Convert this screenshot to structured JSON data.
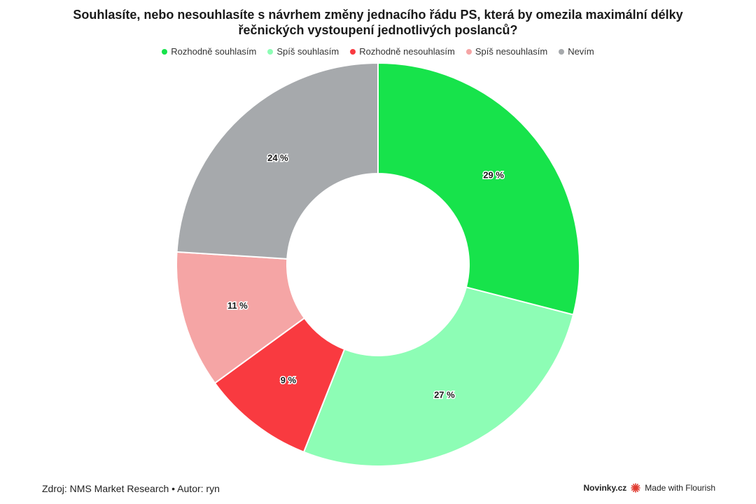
{
  "chart_data": {
    "type": "pie",
    "title": "Souhlasíte, nebo nesouhlasíte s návrhem změny jednacího řádu PS, která by omezila maximální délky řečnických vystoupení jednotlivých poslanců?",
    "donut": true,
    "legend_position": "top",
    "slices": [
      {
        "label": "Rozhodně souhlasím",
        "value": 29,
        "display": "29 %",
        "color": "#17e34b"
      },
      {
        "label": "Spíš souhlasím",
        "value": 27,
        "display": "27 %",
        "color": "#8dfdb5"
      },
      {
        "label": "Rozhodně nesouhlasím",
        "value": 9,
        "display": "9 %",
        "color": "#f93a40"
      },
      {
        "label": "Spíš nesouhlasím",
        "value": 11,
        "display": "11 %",
        "color": "#f5a5a5"
      },
      {
        "label": "Nevím",
        "value": 24,
        "display": "24 %",
        "color": "#a6a9ac"
      }
    ]
  },
  "footer": {
    "source": "Zdroj: NMS Market Research • Autor: ryn",
    "brand": "Novinky.cz",
    "made_with": "Made with Flourish",
    "flourish_color": "#e03a2f"
  }
}
